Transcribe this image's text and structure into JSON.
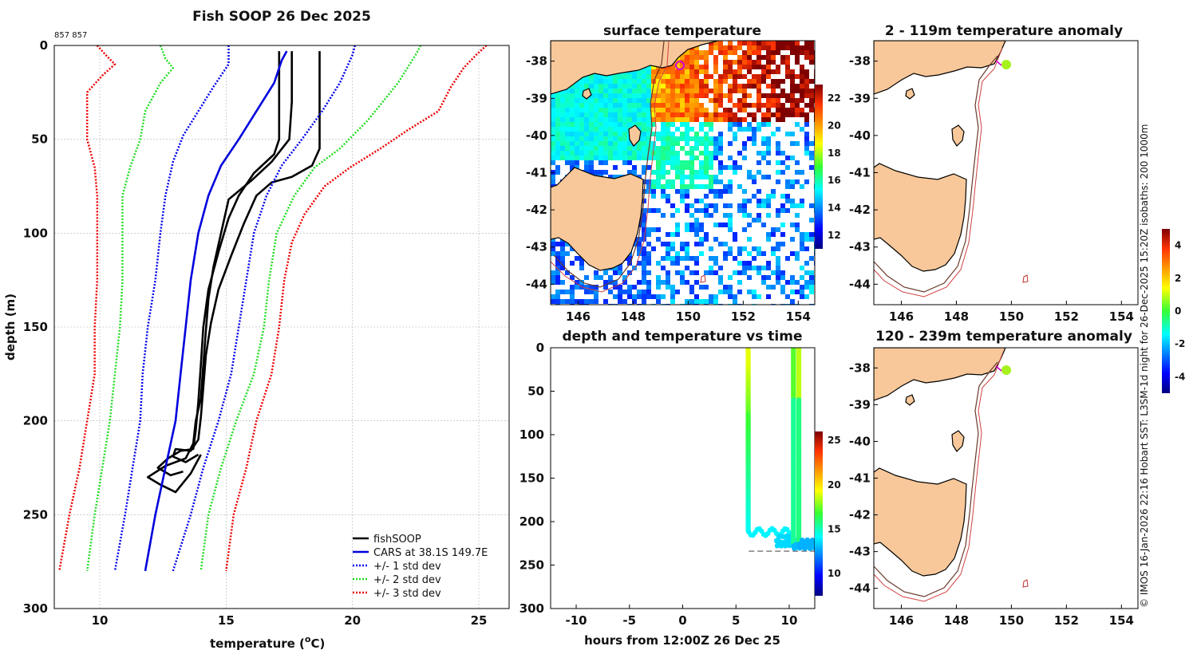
{
  "chart_data": [
    {
      "type": "line",
      "title": "Fish SOOP 26 Dec 2025",
      "corner_label": "857 857",
      "xlabel": "temperature (",
      "xlabel_sup": "o",
      "xlabel_end": "C)",
      "ylabel": "depth (m)",
      "xlim": [
        8.2,
        26.2
      ],
      "ylim": [
        300,
        0
      ],
      "xticks": [
        "10",
        "15",
        "20",
        "25"
      ],
      "yticks": [
        "0",
        "50",
        "100",
        "150",
        "200",
        "250",
        "300"
      ],
      "legend": [
        "fishSOOP",
        "CARS at 38.1S 149.7E",
        "+/- 1 std dev",
        "+/- 2 std dev",
        "+/- 3 std dev"
      ],
      "series": [
        {
          "name": "fishSOOP",
          "color": "#000000",
          "points": [
            [
              17.6,
              3
            ],
            [
              17.6,
              30
            ],
            [
              17.5,
              50
            ],
            [
              16.8,
              62
            ],
            [
              16.0,
              72
            ],
            [
              15.1,
              82
            ],
            [
              14.8,
              100
            ],
            [
              14.5,
              118
            ],
            [
              14.3,
              135
            ],
            [
              14.2,
              152
            ],
            [
              14.1,
              170
            ],
            [
              14.0,
              188
            ],
            [
              13.8,
              200
            ],
            [
              13.7,
              212
            ],
            [
              13.4,
              220
            ],
            [
              12.6,
              224
            ],
            [
              11.9,
              230
            ],
            [
              12.4,
              234
            ],
            [
              13.0,
              238
            ],
            [
              13.6,
              228
            ],
            [
              14.0,
              218
            ]
          ]
        },
        {
          "name": "fishSOOP",
          "color": "#000000",
          "points": [
            [
              18.7,
              3
            ],
            [
              18.7,
              30
            ],
            [
              18.7,
              55
            ],
            [
              18.4,
              64
            ],
            [
              17.6,
              70
            ],
            [
              16.8,
              73
            ],
            [
              16.2,
              80
            ],
            [
              15.7,
              95
            ],
            [
              15.2,
              112
            ],
            [
              14.7,
              130
            ],
            [
              14.4,
              148
            ],
            [
              14.2,
              165
            ],
            [
              14.1,
              182
            ],
            [
              14.0,
              198
            ],
            [
              13.9,
              210
            ],
            [
              13.6,
              216
            ],
            [
              13.0,
              215
            ],
            [
              12.9,
              219
            ],
            [
              13.4,
              222
            ],
            [
              13.9,
              218
            ]
          ]
        },
        {
          "name": "fishSOOP",
          "color": "#000000",
          "points": [
            [
              17.1,
              3
            ],
            [
              17.1,
              30
            ],
            [
              17.1,
              50
            ],
            [
              16.9,
              58
            ],
            [
              16.1,
              68
            ],
            [
              15.5,
              80
            ],
            [
              15.1,
              92
            ],
            [
              14.7,
              110
            ],
            [
              14.3,
              130
            ],
            [
              14.1,
              150
            ],
            [
              14.0,
              170
            ],
            [
              13.9,
              190
            ],
            [
              13.8,
              205
            ],
            [
              13.7,
              215
            ],
            [
              13.2,
              216
            ],
            [
              12.7,
              220
            ],
            [
              12.3,
              225
            ],
            [
              12.8,
              229
            ],
            [
              13.3,
              227
            ]
          ]
        },
        {
          "name": "CARS at 38.1S 149.7E",
          "color": "#0000dd",
          "points": [
            [
              17.4,
              3
            ],
            [
              17.2,
              8
            ],
            [
              16.9,
              20
            ],
            [
              16.2,
              35
            ],
            [
              15.5,
              50
            ],
            [
              14.8,
              64
            ],
            [
              14.3,
              80
            ],
            [
              13.9,
              100
            ],
            [
              13.6,
              125
            ],
            [
              13.4,
              150
            ],
            [
              13.2,
              175
            ],
            [
              13.0,
              200
            ],
            [
              12.6,
              225
            ],
            [
              12.2,
              250
            ],
            [
              11.8,
              280
            ]
          ]
        },
        {
          "name": "+1 std dev",
          "color": "#0000ee",
          "dotted": true,
          "points": [
            [
              20.1,
              0
            ],
            [
              20.0,
              5
            ],
            [
              19.5,
              20
            ],
            [
              18.8,
              35
            ],
            [
              18.0,
              50
            ],
            [
              17.2,
              64
            ],
            [
              16.6,
              80
            ],
            [
              16.1,
              100
            ],
            [
              15.8,
              125
            ],
            [
              15.5,
              150
            ],
            [
              15.2,
              175
            ],
            [
              14.7,
              200
            ],
            [
              14.1,
              225
            ],
            [
              13.6,
              250
            ],
            [
              12.9,
              280
            ]
          ]
        },
        {
          "name": "-1 std dev",
          "color": "#0000ee",
          "dotted": true,
          "points": [
            [
              15.1,
              0
            ],
            [
              15.1,
              10
            ],
            [
              14.5,
              22
            ],
            [
              13.9,
              35
            ],
            [
              13.3,
              48
            ],
            [
              12.9,
              62
            ],
            [
              12.6,
              80
            ],
            [
              12.4,
              100
            ],
            [
              12.2,
              125
            ],
            [
              11.9,
              150
            ],
            [
              11.7,
              175
            ],
            [
              11.6,
              200
            ],
            [
              11.3,
              225
            ],
            [
              11.0,
              250
            ],
            [
              10.6,
              280
            ]
          ]
        },
        {
          "name": "+2 std dev",
          "color": "#22dd22",
          "dotted": true,
          "points": [
            [
              22.7,
              0
            ],
            [
              22.5,
              5
            ],
            [
              21.8,
              20
            ],
            [
              20.6,
              40
            ],
            [
              19.5,
              55
            ],
            [
              18.5,
              65
            ],
            [
              17.7,
              80
            ],
            [
              17.0,
              100
            ],
            [
              16.7,
              125
            ],
            [
              16.5,
              150
            ],
            [
              16.1,
              175
            ],
            [
              15.4,
              200
            ],
            [
              14.8,
              225
            ],
            [
              14.3,
              250
            ],
            [
              14.0,
              280
            ]
          ]
        },
        {
          "name": "-2 std dev",
          "color": "#22dd22",
          "dotted": true,
          "points": [
            [
              12.4,
              0
            ],
            [
              12.6,
              7
            ],
            [
              12.9,
              12
            ],
            [
              12.4,
              20
            ],
            [
              11.8,
              35
            ],
            [
              11.6,
              50
            ],
            [
              11.2,
              65
            ],
            [
              10.9,
              80
            ],
            [
              10.9,
              100
            ],
            [
              10.9,
              125
            ],
            [
              10.8,
              150
            ],
            [
              10.6,
              175
            ],
            [
              10.4,
              200
            ],
            [
              10.1,
              225
            ],
            [
              9.8,
              250
            ],
            [
              9.5,
              280
            ]
          ]
        },
        {
          "name": "+3 std dev",
          "color": "#ee0000",
          "dotted": true,
          "points": [
            [
              25.3,
              0
            ],
            [
              24.9,
              5
            ],
            [
              24.4,
              12
            ],
            [
              23.9,
              22
            ],
            [
              23.4,
              35
            ],
            [
              22.2,
              45
            ],
            [
              21.1,
              55
            ],
            [
              19.9,
              65
            ],
            [
              18.9,
              75
            ],
            [
              18.1,
              90
            ],
            [
              17.6,
              105
            ],
            [
              17.3,
              125
            ],
            [
              17.1,
              150
            ],
            [
              16.8,
              175
            ],
            [
              16.2,
              200
            ],
            [
              15.8,
              225
            ],
            [
              15.3,
              250
            ],
            [
              15.0,
              280
            ]
          ]
        },
        {
          "name": "-3 std dev",
          "color": "#ee0000",
          "dotted": true,
          "points": [
            [
              9.9,
              0
            ],
            [
              10.3,
              6
            ],
            [
              10.6,
              10
            ],
            [
              10.1,
              16
            ],
            [
              9.5,
              25
            ],
            [
              9.5,
              50
            ],
            [
              9.8,
              65
            ],
            [
              9.9,
              80
            ],
            [
              9.9,
              100
            ],
            [
              9.9,
              125
            ],
            [
              9.8,
              150
            ],
            [
              9.8,
              175
            ],
            [
              9.5,
              200
            ],
            [
              9.2,
              225
            ],
            [
              8.8,
              250
            ],
            [
              8.4,
              280
            ]
          ]
        }
      ]
    },
    {
      "type": "heatmap",
      "title": "surface temperature",
      "xticks": [
        "146",
        "148",
        "150",
        "152",
        "154"
      ],
      "yticks": [
        "-38",
        "-39",
        "-40",
        "-41",
        "-42",
        "-43",
        "-44"
      ],
      "colorbar_ticks": [
        "22",
        "20",
        "18",
        "16",
        "14",
        "12"
      ],
      "clim": [
        11,
        23
      ]
    },
    {
      "type": "scatter",
      "title": "depth and temperature vs time",
      "xlabel": "hours from 12:00Z 26 Dec 25",
      "xticks": [
        "-10",
        "-5",
        "0",
        "5",
        "10"
      ],
      "yticks": [
        "0",
        "50",
        "100",
        "150",
        "200",
        "250",
        "300"
      ],
      "xlim": [
        -12.4,
        12.4
      ],
      "ylim": [
        300,
        0
      ],
      "colorbar_ticks": [
        "25",
        "20",
        "15",
        "10"
      ],
      "clim": [
        7.5,
        26
      ]
    },
    {
      "type": "heatmap",
      "title": "2 - 119m temperature anomaly",
      "xticks": [
        "146",
        "148",
        "150",
        "152",
        "154"
      ],
      "yticks": [
        "-38",
        "-39",
        "-40",
        "-41",
        "-42",
        "-43",
        "-44"
      ]
    },
    {
      "type": "heatmap",
      "title": "120 - 239m temperature anomaly",
      "xticks": [
        "146",
        "148",
        "150",
        "152",
        "154"
      ],
      "yticks": [
        "-38",
        "-39",
        "-40",
        "-41",
        "-42",
        "-43",
        "-44"
      ],
      "colorbar_ticks": [
        "4",
        "2",
        "0",
        "-2",
        "-4"
      ],
      "clim": [
        -5,
        5
      ]
    }
  ],
  "side_note": "© IMOS 16-Jan-2026 22:16 Hobart SST: L3SM-1d night for 26-Dec-2025 15:20Z isobaths: 200  1000m"
}
